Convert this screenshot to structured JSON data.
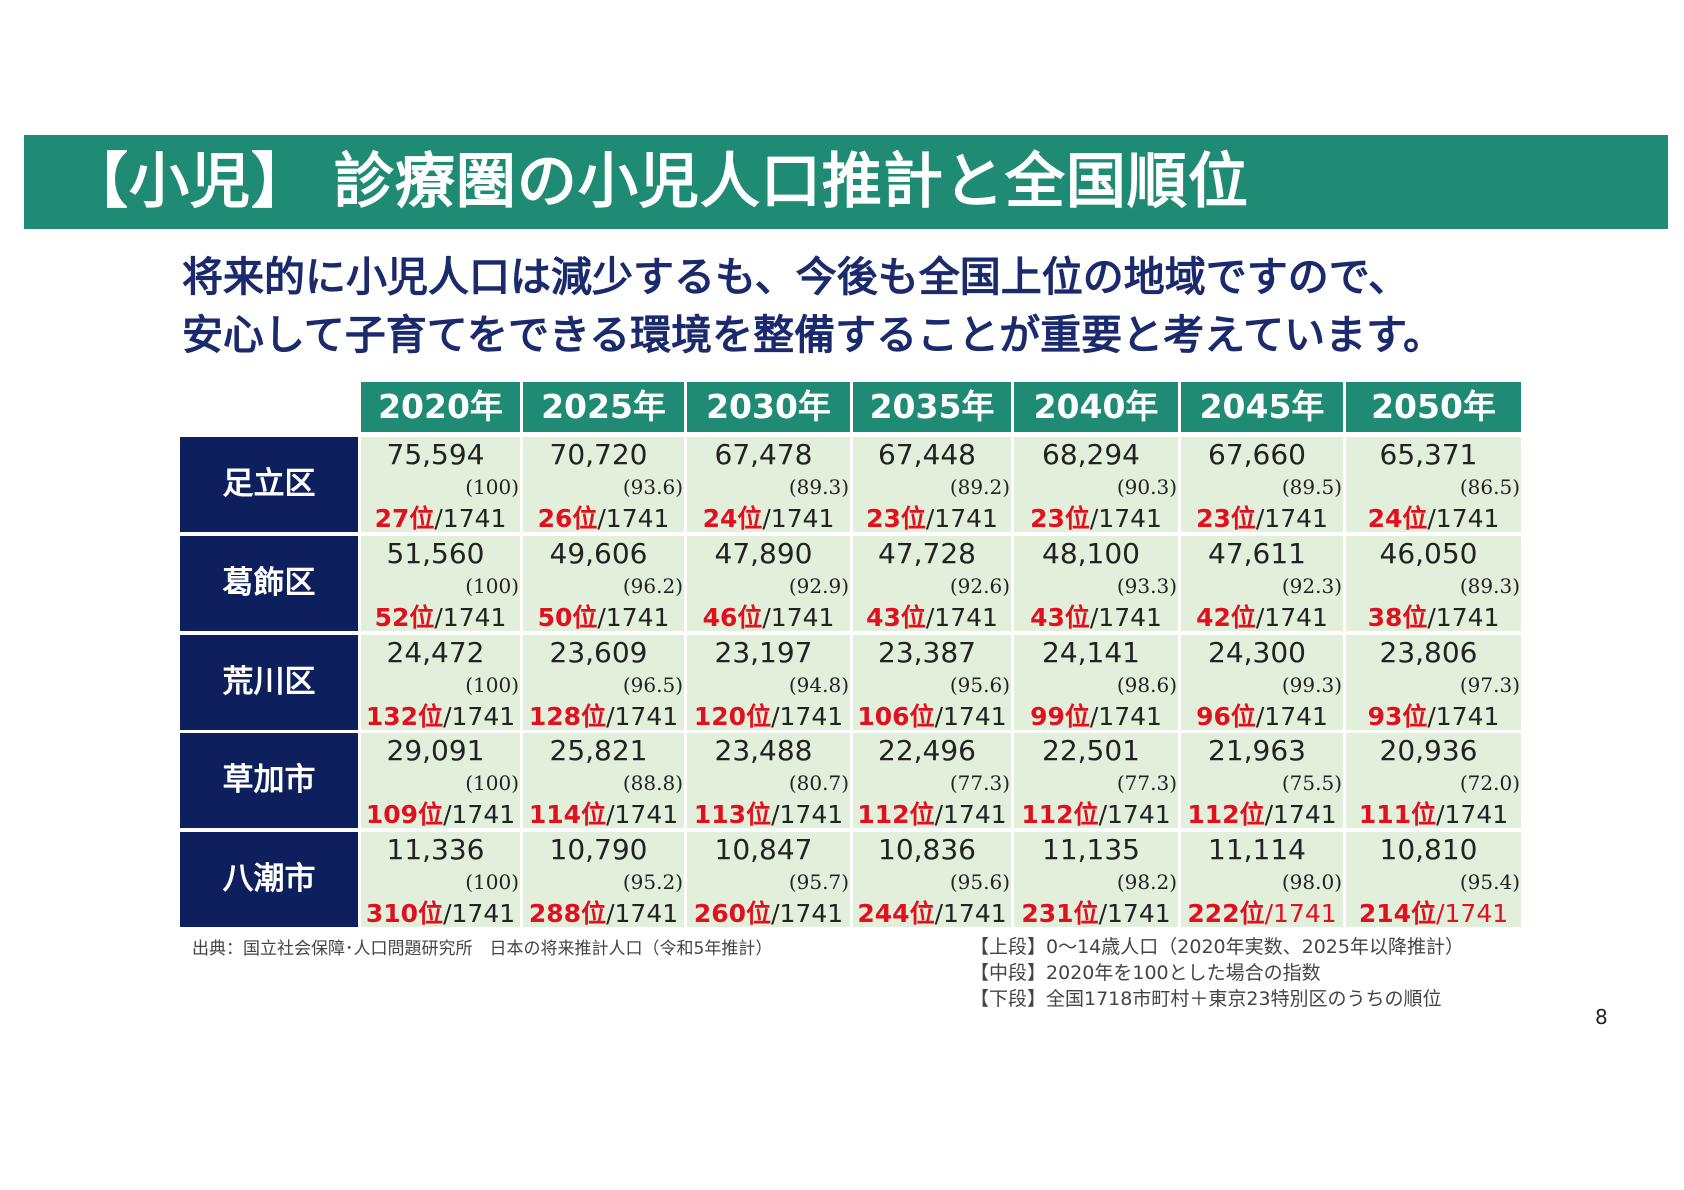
{
  "title": "【小児】 診療圏の小児人口推計と全国順位",
  "subtitle": {
    "line1": "将来的に小児人口は減少するも、今後も全国上位の地域ですので、",
    "line2": "安心して子育てをできる環境を整備することが重要と考えています。"
  },
  "table": {
    "years": [
      "2020年",
      "2025年",
      "2030年",
      "2035年",
      "2040年",
      "2045年",
      "2050年"
    ],
    "rank_total": "/1741",
    "rank_suffix": "位",
    "rows": [
      {
        "label": "足立区",
        "cells": [
          {
            "pop": "75,594",
            "idx": "(100)",
            "rank": "27"
          },
          {
            "pop": "70,720",
            "idx": "(93.6)",
            "rank": "26"
          },
          {
            "pop": "67,478",
            "idx": "(89.3)",
            "rank": "24"
          },
          {
            "pop": "67,448",
            "idx": "(89.2)",
            "rank": "23"
          },
          {
            "pop": "68,294",
            "idx": "(90.3)",
            "rank": "23"
          },
          {
            "pop": "67,660",
            "idx": "(89.5)",
            "rank": "23"
          },
          {
            "pop": "65,371",
            "idx": "(86.5)",
            "rank": "24"
          }
        ]
      },
      {
        "label": "葛飾区",
        "cells": [
          {
            "pop": "51,560",
            "idx": "(100)",
            "rank": "52"
          },
          {
            "pop": "49,606",
            "idx": "(96.2)",
            "rank": "50"
          },
          {
            "pop": "47,890",
            "idx": "(92.9)",
            "rank": "46"
          },
          {
            "pop": "47,728",
            "idx": "(92.6)",
            "rank": "43"
          },
          {
            "pop": "48,100",
            "idx": "(93.3)",
            "rank": "43"
          },
          {
            "pop": "47,611",
            "idx": "(92.3)",
            "rank": "42"
          },
          {
            "pop": "46,050",
            "idx": "(89.3)",
            "rank": "38"
          }
        ]
      },
      {
        "label": "荒川区",
        "cells": [
          {
            "pop": "24,472",
            "idx": "(100)",
            "rank": "132"
          },
          {
            "pop": "23,609",
            "idx": "(96.5)",
            "rank": "128"
          },
          {
            "pop": "23,197",
            "idx": "(94.8)",
            "rank": "120"
          },
          {
            "pop": "23,387",
            "idx": "(95.6)",
            "rank": "106"
          },
          {
            "pop": "24,141",
            "idx": "(98.6)",
            "rank": "99"
          },
          {
            "pop": "24,300",
            "idx": "(99.3)",
            "rank": "96"
          },
          {
            "pop": "23,806",
            "idx": "(97.3)",
            "rank": "93"
          }
        ]
      },
      {
        "label": "草加市",
        "cells": [
          {
            "pop": "29,091",
            "idx": "(100)",
            "rank": "109"
          },
          {
            "pop": "25,821",
            "idx": "(88.8)",
            "rank": "114"
          },
          {
            "pop": "23,488",
            "idx": "(80.7)",
            "rank": "113"
          },
          {
            "pop": "22,496",
            "idx": "(77.3)",
            "rank": "112"
          },
          {
            "pop": "22,501",
            "idx": "(77.3)",
            "rank": "112"
          },
          {
            "pop": "21,963",
            "idx": "(75.5)",
            "rank": "112"
          },
          {
            "pop": "20,936",
            "idx": "(72.0)",
            "rank": "111"
          }
        ]
      },
      {
        "label": "八潮市",
        "cells": [
          {
            "pop": "11,336",
            "idx": "(100)",
            "rank": "310"
          },
          {
            "pop": "10,790",
            "idx": "(95.2)",
            "rank": "288"
          },
          {
            "pop": "10,847",
            "idx": "(95.7)",
            "rank": "260"
          },
          {
            "pop": "10,836",
            "idx": "(95.6)",
            "rank": "244"
          },
          {
            "pop": "11,135",
            "idx": "(98.2)",
            "rank": "231"
          },
          {
            "pop": "11,114",
            "idx": "(98.0)",
            "rank": "222",
            "total_red": true
          },
          {
            "pop": "10,810",
            "idx": "(95.4)",
            "rank": "214",
            "total_red": true
          }
        ]
      }
    ]
  },
  "source": "出典：国立社会保障･人口問題研究所　日本の将来推計人口（令和5年推計）",
  "notes": [
    "【上段】0～14歳人口（2020年実数、2025年以降推計）",
    "【中段】2020年を100とした場合の指数",
    "【下段】全国1718市町村＋東京23特別区のうちの順位"
  ],
  "page_number": "8",
  "colors": {
    "title_band": "#1f8b74",
    "header_cell": "#1f8b74",
    "row_label": "#0d1f5c",
    "data_cell": "#e2efda",
    "rank_red": "#e0101e",
    "subtitle": "#1a2a6c"
  }
}
